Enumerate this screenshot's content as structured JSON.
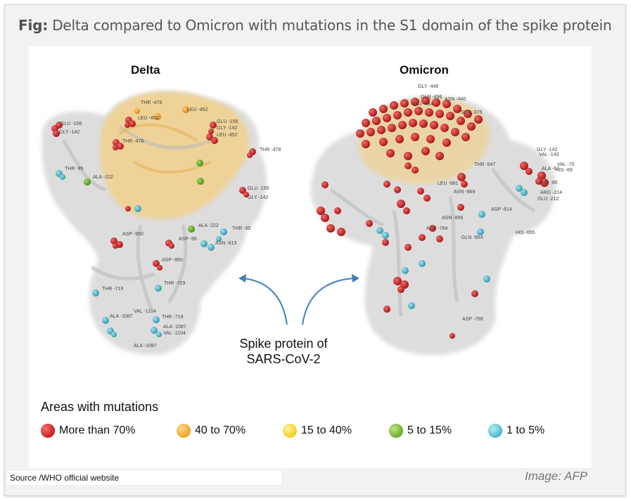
{
  "figure": {
    "title_prefix": "Fig:",
    "title_text": " Delta compared to Omicron with mutations in the S1 domain of the spike protein"
  },
  "delta": {
    "name": "Delta",
    "labels": [
      "THR -478",
      "LEU -452",
      "LEU -452",
      "GLU -156",
      "GLY -142",
      "GLU -156",
      "GLY -142",
      "LEU -452",
      "THR -478",
      "THR -478",
      "THR -95",
      "ALA -222",
      "GLU -156",
      "GLY -142",
      "ALA -222",
      "THR -95",
      "ASP -950",
      "ASP -95",
      "ASN -613",
      "ASP -950",
      "THR -719",
      "THR -719",
      "VAL -1104",
      "ALA -1087",
      "THR -719",
      "ALA -1087",
      "VAL -1104",
      "ALA -1087"
    ]
  },
  "omicron": {
    "name": "Omicron",
    "labels": [
      "GLY -446",
      "GLN -498",
      "ASN -440",
      "GLU -484",
      "SER -375",
      "THR -547",
      "GLY -142",
      "VAL -143",
      "VAL -70",
      "ALA -67",
      "HIS -69",
      "THR -95",
      "ARG -214",
      "GLU -212",
      "LEU -981",
      "ASN -969",
      "ASP -614",
      "ASN -856",
      "ASN -764",
      "GLN -954",
      "HIS -655",
      "ASP -796"
    ]
  },
  "caption": {
    "line1": "Spike protein of",
    "line2": "SARS-CoV-2"
  },
  "legend": {
    "title": "Areas with mutations",
    "items": [
      {
        "label": "More than 70%",
        "color": "#c81e1e"
      },
      {
        "label": "40 to 70%",
        "color": "#f0a020"
      },
      {
        "label": "15 to 40%",
        "color": "#f5d020"
      },
      {
        "label": "5 to 15%",
        "color": "#6aaa2a"
      },
      {
        "label": "1 to 5%",
        "color": "#4bb8cc"
      }
    ]
  },
  "source": "Source /WHO official website",
  "credit": "Image: AFP"
}
